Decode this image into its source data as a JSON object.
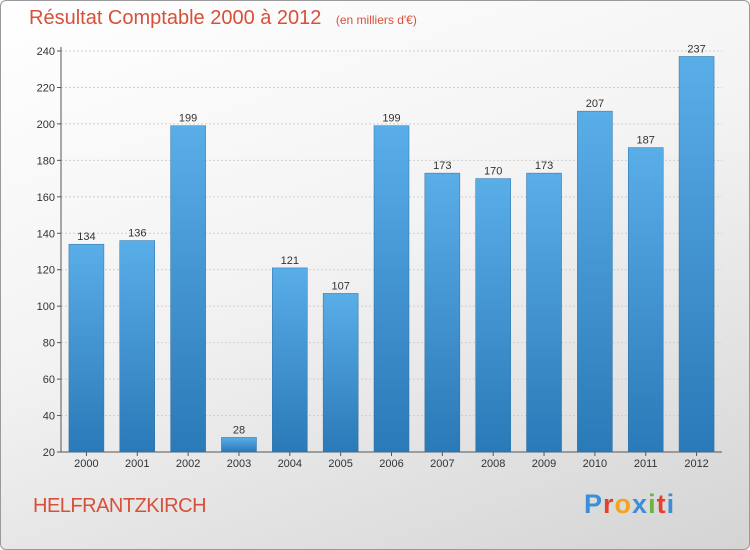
{
  "header": {
    "title": "Résultat Comptable 2000 à 2012",
    "subtitle": "(en milliers d'€)"
  },
  "footer": {
    "location": "HELFRANTZKIRCH",
    "logo_letters": [
      "P",
      "r",
      "o",
      "x",
      "i",
      "t",
      "i"
    ],
    "logo_colors": [
      "#3a8fd6",
      "#e3412f",
      "#f2a41d",
      "#3a8fd6",
      "#6cb33f",
      "#e3412f",
      "#3a8fd6"
    ]
  },
  "chart_data": {
    "type": "bar",
    "categories": [
      "2000",
      "2001",
      "2002",
      "2003",
      "2004",
      "2005",
      "2006",
      "2007",
      "2008",
      "2009",
      "2010",
      "2011",
      "2012"
    ],
    "values": [
      134,
      136,
      199,
      28,
      121,
      107,
      199,
      173,
      170,
      173,
      207,
      187,
      237
    ],
    "data_labels": [
      "134",
      "136",
      "199",
      "28",
      "121",
      "107",
      "199",
      "173",
      "170",
      "173",
      "207",
      "187",
      "237"
    ],
    "yticks": [
      "20",
      "40",
      "60",
      "80",
      "100",
      "120",
      "140",
      "160",
      "180",
      "200",
      "220",
      "240"
    ],
    "ylim": [
      20,
      240
    ],
    "grid": "horizontal",
    "bar_color_top": "#5aaee8",
    "bar_color_bottom": "#2a79b8"
  }
}
